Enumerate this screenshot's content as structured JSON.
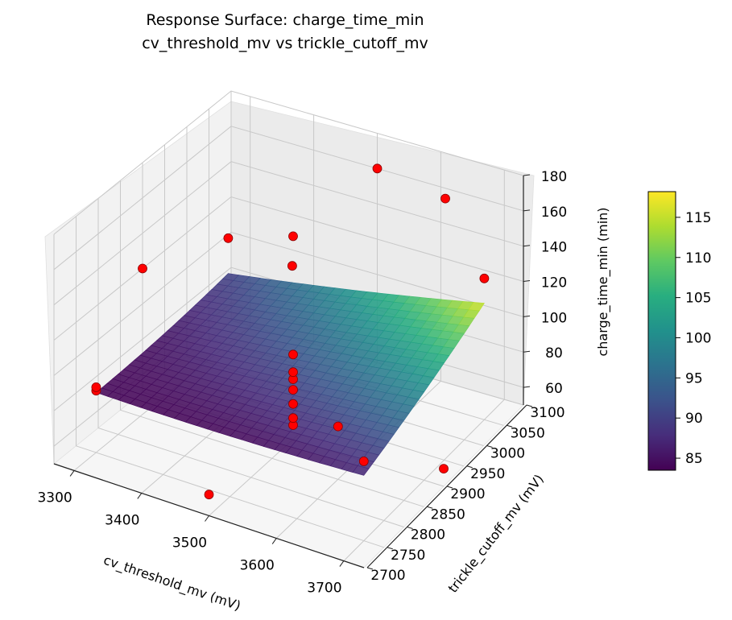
{
  "chart_data": {
    "type": "surface3d",
    "title_line1": "Response Surface: charge_time_min",
    "title_line2": "cv_threshold_mv vs trickle_cutoff_mv",
    "xlabel": "cv_threshold_mv (mV)",
    "ylabel": "trickle_cutoff_mv (mV)",
    "zlabel": "charge_time_min (min)",
    "x_ticks": [
      3300,
      3400,
      3500,
      3600,
      3700
    ],
    "y_ticks": [
      2700,
      2750,
      2800,
      2850,
      2900,
      2950,
      3000,
      3050,
      3100
    ],
    "z_ticks": [
      60,
      80,
      100,
      120,
      140,
      160,
      180
    ],
    "xlim": [
      3270,
      3730
    ],
    "ylim": [
      2700,
      3100
    ],
    "zlim": [
      50,
      180
    ],
    "colormap": "viridis",
    "colorbar_range": [
      83.5,
      118.2
    ],
    "colorbar_ticks": [
      85,
      90,
      95,
      100,
      105,
      110,
      115
    ],
    "surface_range": {
      "x": [
        3300,
        3700
      ],
      "y": [
        2750,
        3050
      ]
    },
    "point_color": "#ff0000",
    "points": [
      {
        "x": 3300,
        "y": 2750,
        "z": 85
      },
      {
        "x": 3300,
        "y": 2750,
        "z": 87
      },
      {
        "x": 3300,
        "y": 3050,
        "z": 110
      },
      {
        "x": 3700,
        "y": 2750,
        "z": 95
      },
      {
        "x": 3700,
        "y": 3050,
        "z": 130
      },
      {
        "x": 3500,
        "y": 2900,
        "z": 58
      },
      {
        "x": 3500,
        "y": 2900,
        "z": 62
      },
      {
        "x": 3500,
        "y": 2900,
        "z": 70
      },
      {
        "x": 3500,
        "y": 2900,
        "z": 78
      },
      {
        "x": 3500,
        "y": 2900,
        "z": 84
      },
      {
        "x": 3500,
        "y": 2900,
        "z": 88
      },
      {
        "x": 3500,
        "y": 2900,
        "z": 98
      },
      {
        "x": 3500,
        "y": 2900,
        "z": 165
      },
      {
        "x": 3500,
        "y": 2700,
        "z": 62
      },
      {
        "x": 3500,
        "y": 3100,
        "z": 160
      },
      {
        "x": 3270,
        "y": 2900,
        "z": 120
      },
      {
        "x": 3730,
        "y": 2900,
        "z": 60
      },
      {
        "x": 3600,
        "y": 2850,
        "z": 80
      },
      {
        "x": 3620,
        "y": 3080,
        "z": 160
      },
      {
        "x": 3400,
        "y": 3050,
        "z": 105
      }
    ]
  }
}
